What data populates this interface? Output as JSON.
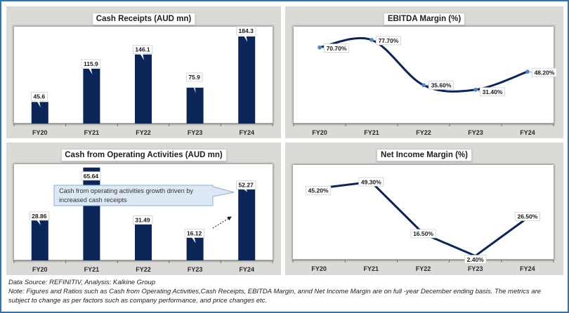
{
  "colors": {
    "frame": "#2E75B6",
    "panel_bg": "#DCDAD6",
    "bar": "#0B2559",
    "line": "#0B2559",
    "marker": "#4A86C8",
    "callout_fill": "#DCE9F5",
    "callout_border": "#8AAED6"
  },
  "chart_data": [
    {
      "type": "bar",
      "title": "Cash Receipts (AUD mn)",
      "categories": [
        "FY20",
        "FY21",
        "FY22",
        "FY23",
        "FY24"
      ],
      "values": [
        45.6,
        115.9,
        146.1,
        75.9,
        184.3
      ],
      "data_labels": [
        "45.6",
        "115.9",
        "146.1",
        "75.9",
        "184.3"
      ],
      "xlabel": "",
      "ylabel": "",
      "ylim": [
        0,
        205
      ],
      "grid": false,
      "legend": "none"
    },
    {
      "type": "line",
      "title": "EBITDA Margin (%)",
      "categories": [
        "FY20",
        "FY21",
        "FY22",
        "FY23",
        "FY24"
      ],
      "values": [
        70.7,
        77.7,
        35.6,
        31.4,
        48.2
      ],
      "data_labels": [
        "70.70%",
        "77.70%",
        "35.60%",
        "31.40%",
        "48.20%"
      ],
      "xlabel": "",
      "ylabel": "",
      "ylim": [
        0,
        90
      ],
      "smooth": true,
      "markers": true,
      "grid": false,
      "legend": "none"
    },
    {
      "type": "bar",
      "title": "Cash from Operating Activities (AUD mn)",
      "categories": [
        "FY20",
        "FY21",
        "FY22",
        "FY23",
        "FY24"
      ],
      "values": [
        28.86,
        65.64,
        31.49,
        16.12,
        52.27
      ],
      "data_labels": [
        "28.86",
        "65.64",
        "31.49",
        "16.12",
        "52.27"
      ],
      "xlabel": "",
      "ylabel": "",
      "ylim": [
        0,
        68
      ],
      "grid": false,
      "legend": "none",
      "annotation": {
        "text": "Cash from operating activities growth driven by increased cash receipts",
        "points_to": "FY24"
      },
      "trend_arrow": {
        "from": "FY23",
        "to": "FY24"
      }
    },
    {
      "type": "line",
      "title": "Net Income Margin (%)",
      "categories": [
        "FY20",
        "FY21",
        "FY22",
        "FY23",
        "FY24"
      ],
      "values": [
        45.2,
        49.3,
        16.5,
        2.4,
        26.5
      ],
      "data_labels": [
        "45.20%",
        "49.30%",
        "16.50%",
        "2.40%",
        "26.50%"
      ],
      "xlabel": "",
      "ylabel": "",
      "ylim": [
        0,
        60
      ],
      "smooth": false,
      "markers": false,
      "grid": false,
      "legend": "none"
    }
  ],
  "footer": {
    "source": "Data Source: REFINITIV, Analysis: Kalkine Group",
    "note": "Note: Figures and Ratios such as Cash from Operating Activities,Cash Receipts, EBITDA Margin, annd Net Income Margin are on full -year December ending basis. The metrics are subject to change as per factors such as company performance, and price changes etc."
  }
}
